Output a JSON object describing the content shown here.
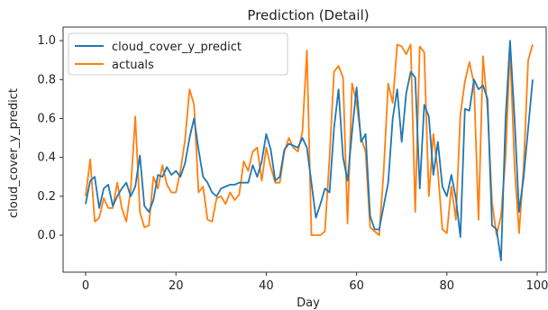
{
  "chart_data": {
    "type": "line",
    "title": "Prediction (Detail)",
    "xlabel": "Day",
    "ylabel": "cloud_cover_y_predict",
    "xlim": [
      -5,
      102
    ],
    "ylim": [
      -0.19,
      1.07
    ],
    "xticks": [
      0,
      20,
      40,
      60,
      80,
      100
    ],
    "yticks": [
      0.0,
      0.2,
      0.4,
      0.6,
      0.8,
      1.0
    ],
    "xtick_labels": [
      "0",
      "20",
      "40",
      "60",
      "80",
      "100"
    ],
    "ytick_labels": [
      "0.0",
      "0.2",
      "0.4",
      "0.6",
      "0.8",
      "1.0"
    ],
    "legend_position": "top-left",
    "grid": false,
    "series": [
      {
        "name": "cloud_cover_y_predict",
        "color": "#1f77b4",
        "values": [
          0.16,
          0.28,
          0.3,
          0.14,
          0.24,
          0.26,
          0.15,
          0.2,
          0.24,
          0.27,
          0.2,
          0.25,
          0.41,
          0.15,
          0.12,
          0.18,
          0.31,
          0.3,
          0.35,
          0.31,
          0.33,
          0.3,
          0.37,
          0.5,
          0.6,
          0.44,
          0.3,
          0.27,
          0.22,
          0.2,
          0.24,
          0.25,
          0.26,
          0.26,
          0.27,
          0.27,
          0.27,
          0.36,
          0.3,
          0.38,
          0.52,
          0.44,
          0.28,
          0.3,
          0.44,
          0.47,
          0.46,
          0.45,
          0.5,
          0.45,
          0.27,
          0.09,
          0.16,
          0.24,
          0.22,
          0.55,
          0.75,
          0.4,
          0.28,
          0.53,
          0.76,
          0.48,
          0.52,
          0.1,
          0.03,
          0.03,
          0.15,
          0.27,
          0.6,
          0.75,
          0.48,
          0.73,
          0.84,
          0.81,
          0.24,
          0.67,
          0.61,
          0.31,
          0.48,
          0.25,
          0.2,
          0.31,
          0.19,
          -0.01,
          0.65,
          0.64,
          0.8,
          0.75,
          0.77,
          0.7,
          0.05,
          0.03,
          -0.13,
          0.6,
          1.0,
          0.6,
          0.12,
          0.3,
          0.55,
          0.8
        ]
      },
      {
        "name": "actuals",
        "color": "#ff7f0e",
        "values": [
          0.2,
          0.39,
          0.07,
          0.09,
          0.19,
          0.14,
          0.14,
          0.27,
          0.14,
          0.07,
          0.24,
          0.61,
          0.12,
          0.04,
          0.05,
          0.3,
          0.24,
          0.36,
          0.26,
          0.22,
          0.22,
          0.33,
          0.49,
          0.75,
          0.67,
          0.22,
          0.25,
          0.08,
          0.07,
          0.19,
          0.2,
          0.16,
          0.22,
          0.18,
          0.21,
          0.38,
          0.33,
          0.43,
          0.45,
          0.28,
          0.45,
          0.35,
          0.27,
          0.27,
          0.43,
          0.5,
          0.45,
          0.43,
          0.53,
          0.95,
          0.0,
          0.0,
          0.0,
          0.02,
          0.4,
          0.84,
          0.87,
          0.81,
          0.06,
          0.78,
          0.68,
          0.5,
          0.43,
          0.04,
          0.02,
          0.0,
          0.33,
          0.78,
          0.68,
          0.98,
          0.97,
          0.93,
          0.98,
          0.12,
          0.97,
          0.94,
          0.2,
          0.52,
          0.33,
          0.03,
          0.01,
          0.25,
          0.08,
          0.62,
          0.79,
          0.89,
          0.78,
          0.08,
          0.92,
          0.65,
          0.17,
          0.0,
          0.1,
          0.4,
          0.96,
          0.35,
          0.01,
          0.35,
          0.9,
          0.98
        ]
      }
    ]
  }
}
